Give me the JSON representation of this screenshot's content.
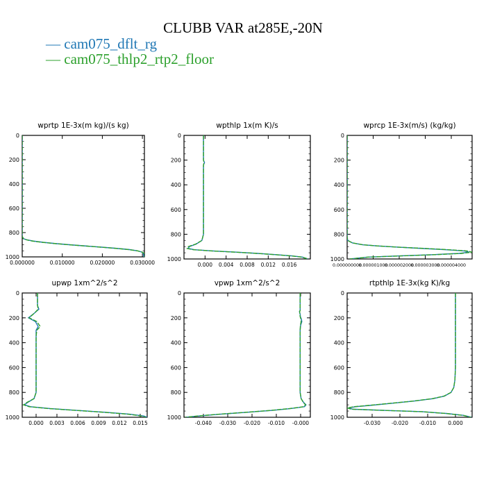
{
  "figure": {
    "title": "CLUBB VAR at285E,-20N",
    "legend": [
      {
        "label": "cam075_dflt_rg",
        "color": "#1f77b4"
      },
      {
        "label": "cam075_thlp2_rtp2_floor",
        "color": "#2ca02c"
      }
    ]
  },
  "colors": {
    "axis": "#000000",
    "series_a": "#1f77b4",
    "series_b": "#2ca02c"
  },
  "chart_data": [
    {
      "type": "line",
      "title": "wprtp  1E-3x(m kg)/(s kg)",
      "xlim": [
        0,
        0.0305
      ],
      "ylim": [
        0,
        1000
      ],
      "y_inverted": true,
      "xticks": [
        0.0,
        0.01,
        0.02,
        0.03
      ],
      "xtick_labels": [
        "0.000000",
        "0.010000",
        "0.020000",
        "0.030000"
      ],
      "yticks": [
        0,
        200,
        400,
        600,
        800,
        1000
      ],
      "ytick_labels": [
        "0",
        "200",
        "400",
        "600",
        "800",
        "1000"
      ],
      "y": [
        0,
        800,
        830,
        850,
        860,
        870,
        880,
        890,
        900,
        910,
        920,
        930,
        940,
        950,
        960,
        970,
        980,
        1000
      ],
      "series": [
        {
          "name": "cam075_dflt_rg",
          "x": [
            0,
            0,
            0,
            0.0003,
            0.0012,
            0.0028,
            0.0052,
            0.0082,
            0.0118,
            0.0158,
            0.0198,
            0.0236,
            0.0268,
            0.0288,
            0.0298,
            0.0302,
            0.0303,
            0.0303
          ]
        },
        {
          "name": "cam075_thlp2_rtp2_floor",
          "x": [
            0,
            0,
            0,
            0.0003,
            0.0011,
            0.0026,
            0.005,
            0.008,
            0.0116,
            0.0156,
            0.0196,
            0.0234,
            0.0266,
            0.0287,
            0.0299,
            0.0304,
            0.0305,
            0.0305
          ]
        }
      ]
    },
    {
      "type": "line",
      "title": "wpthlp  1x(m K)/s",
      "xlim": [
        -0.004,
        0.02
      ],
      "ylim": [
        0,
        1000
      ],
      "y_inverted": true,
      "xticks": [
        0.0,
        0.004,
        0.008,
        0.012,
        0.016
      ],
      "xtick_labels": [
        "0.000",
        "0.004",
        "0.008",
        "0.012",
        "0.016"
      ],
      "yticks": [
        0,
        200,
        400,
        600,
        800,
        1000
      ],
      "ytick_labels": [
        "0",
        "200",
        "400",
        "600",
        "800",
        "1000"
      ],
      "y": [
        0,
        200,
        220,
        240,
        400,
        600,
        800,
        850,
        880,
        900,
        915,
        925,
        935,
        945,
        955,
        965,
        975,
        985,
        1000
      ],
      "series": [
        {
          "name": "cam075_dflt_rg",
          "x": [
            -0.0003,
            -0.0003,
            -0.0001,
            -0.0003,
            -0.0003,
            -0.0003,
            -0.0003,
            -0.0006,
            -0.0017,
            -0.003,
            -0.0032,
            -0.002,
            0.0015,
            0.006,
            0.01,
            0.0135,
            0.0165,
            0.0185,
            0.0195
          ]
        },
        {
          "name": "cam075_thlp2_rtp2_floor",
          "x": [
            -0.0003,
            -0.0003,
            -0.0002,
            -0.0003,
            -0.0003,
            -0.0003,
            -0.0003,
            -0.0006,
            -0.0018,
            -0.0032,
            -0.0034,
            -0.0022,
            0.0012,
            0.0058,
            0.0098,
            0.0133,
            0.0163,
            0.0184,
            0.0196
          ]
        }
      ]
    },
    {
      "type": "line",
      "title": "wprcp  1E-3x(m/s) (kg/kg)",
      "xlim": [
        0,
        4.8e-06
      ],
      "ylim": [
        0,
        1000
      ],
      "y_inverted": true,
      "xticks": [
        0.0,
        1e-06,
        2e-06,
        3e-06,
        4e-06
      ],
      "xtick_labels": [
        "0.000000000",
        "0.000001000",
        "0.000002000",
        "0.000003000",
        "0.000004000"
      ],
      "yticks": [
        0,
        200,
        400,
        600,
        800,
        1000
      ],
      "ytick_labels": [
        "0",
        "200",
        "400",
        "600",
        "800",
        "1000"
      ],
      "y": [
        0,
        820,
        850,
        870,
        885,
        895,
        905,
        915,
        925,
        935,
        945,
        955,
        965,
        975,
        985,
        1000
      ],
      "series": [
        {
          "name": "cam075_dflt_rg",
          "x": [
            0,
            0,
            2e-08,
            2e-07,
            6e-07,
            1.2e-06,
            2e-06,
            2.9e-06,
            3.8e-06,
            4.5e-06,
            4.7e-06,
            4.3e-06,
            3.3e-06,
            2e-06,
            8e-07,
            1e-07
          ]
        },
        {
          "name": "cam075_thlp2_rtp2_floor",
          "x": [
            0,
            0,
            2e-08,
            2e-07,
            6e-07,
            1.2e-06,
            2e-06,
            3e-06,
            3.9e-06,
            4.6e-06,
            4.8e-06,
            4.4e-06,
            3.4e-06,
            2.1e-06,
            8e-07,
            1e-07
          ]
        }
      ]
    },
    {
      "type": "line",
      "title": "upwp  1xm^2/s^2",
      "xlim": [
        -0.002,
        0.016
      ],
      "ylim": [
        0,
        1000
      ],
      "y_inverted": true,
      "xticks": [
        0.0,
        0.003,
        0.006,
        0.009,
        0.012,
        0.015
      ],
      "xtick_labels": [
        "0.000",
        "0.003",
        "0.006",
        "0.009",
        "0.012",
        "0.015"
      ],
      "yticks": [
        0,
        200,
        400,
        600,
        800,
        1000
      ],
      "ytick_labels": [
        "0",
        "200",
        "400",
        "600",
        "800",
        "1000"
      ],
      "y": [
        0,
        100,
        130,
        160,
        200,
        230,
        270,
        300,
        350,
        600,
        800,
        850,
        880,
        900,
        915,
        930,
        945,
        960,
        975,
        990,
        1000
      ],
      "series": [
        {
          "name": "cam075_dflt_rg",
          "x": [
            0.0002,
            0.0002,
            0.0004,
            -0.0002,
            -0.0011,
            -0.0001,
            0.0003,
            0.0,
            0.0,
            0.0,
            0.0,
            -0.0003,
            -0.0012,
            -0.0017,
            -0.0008,
            0.002,
            0.006,
            0.01,
            0.0135,
            0.0155,
            0.016
          ]
        },
        {
          "name": "cam075_thlp2_rtp2_floor",
          "x": [
            0.0002,
            0.0002,
            0.0003,
            -0.0002,
            -0.001,
            0.0001,
            0.0006,
            0.0001,
            0.0,
            0.0,
            0.0,
            -0.0003,
            -0.0013,
            -0.0018,
            -0.001,
            0.0018,
            0.0058,
            0.0098,
            0.0132,
            0.0152,
            0.0158
          ]
        }
      ]
    },
    {
      "type": "line",
      "title": "vpwp  1xm^2/s^2",
      "xlim": [
        -0.048,
        0.004
      ],
      "ylim": [
        0,
        1000
      ],
      "y_inverted": true,
      "xticks": [
        -0.04,
        -0.03,
        -0.02,
        -0.01,
        0.0
      ],
      "xtick_labels": [
        "-0.040",
        "-0.030",
        "-0.020",
        "-0.010",
        "-0.000"
      ],
      "yticks": [
        0,
        200,
        400,
        600,
        800,
        1000
      ],
      "ytick_labels": [
        "0",
        "200",
        "400",
        "600",
        "800",
        "1000"
      ],
      "y": [
        0,
        140,
        150,
        170,
        190,
        210,
        230,
        260,
        300,
        600,
        800,
        850,
        880,
        900,
        915,
        930,
        945,
        960,
        975,
        990,
        1000
      ],
      "series": [
        {
          "name": "cam075_dflt_rg",
          "x": [
            -0.0002,
            -0.0002,
            -0.0005,
            -0.0002,
            -0.0001,
            0.0003,
            0.0005,
            0.0,
            -0.0002,
            -0.0002,
            -0.0002,
            0.0002,
            0.0012,
            0.0022,
            0.0016,
            -0.004,
            -0.012,
            -0.022,
            -0.033,
            -0.042,
            -0.047
          ]
        },
        {
          "name": "cam075_thlp2_rtp2_floor",
          "x": [
            -0.0002,
            -0.0002,
            -0.0004,
            -0.0003,
            -0.0002,
            0.0001,
            0.0002,
            -0.0001,
            -0.0002,
            -0.0002,
            -0.0002,
            0.0002,
            0.0011,
            0.002,
            0.0013,
            -0.0045,
            -0.0125,
            -0.0225,
            -0.0335,
            -0.0425,
            -0.0475
          ]
        }
      ]
    },
    {
      "type": "line",
      "title": "rtpthlp  1E-3x(kg K)/kg",
      "xlim": [
        -0.039,
        0.006
      ],
      "ylim": [
        0,
        1000
      ],
      "y_inverted": true,
      "xticks": [
        -0.03,
        -0.02,
        -0.01,
        0.0
      ],
      "xtick_labels": [
        "-0.030",
        "-0.020",
        "-0.010",
        "0.000"
      ],
      "yticks": [
        0,
        200,
        400,
        600,
        800,
        1000
      ],
      "ytick_labels": [
        "0",
        "200",
        "400",
        "600",
        "800",
        "1000"
      ],
      "y": [
        0,
        400,
        600,
        700,
        760,
        800,
        830,
        850,
        870,
        890,
        905,
        915,
        925,
        935,
        945,
        955,
        970,
        985,
        1000
      ],
      "series": [
        {
          "name": "cam075_dflt_rg",
          "x": [
            0.0,
            0.0,
            0.0,
            -0.0002,
            -0.0006,
            -0.0016,
            -0.004,
            -0.008,
            -0.015,
            -0.024,
            -0.031,
            -0.036,
            -0.0385,
            -0.037,
            -0.025,
            -0.012,
            -0.003,
            0.003,
            0.0058
          ]
        },
        {
          "name": "cam075_thlp2_rtp2_floor",
          "x": [
            0.0,
            0.0,
            0.0,
            -0.0002,
            -0.0006,
            -0.0016,
            -0.0042,
            -0.0083,
            -0.0153,
            -0.0245,
            -0.0315,
            -0.0365,
            -0.039,
            -0.0375,
            -0.0255,
            -0.0122,
            -0.0032,
            0.0028,
            0.0056
          ]
        }
      ]
    }
  ]
}
